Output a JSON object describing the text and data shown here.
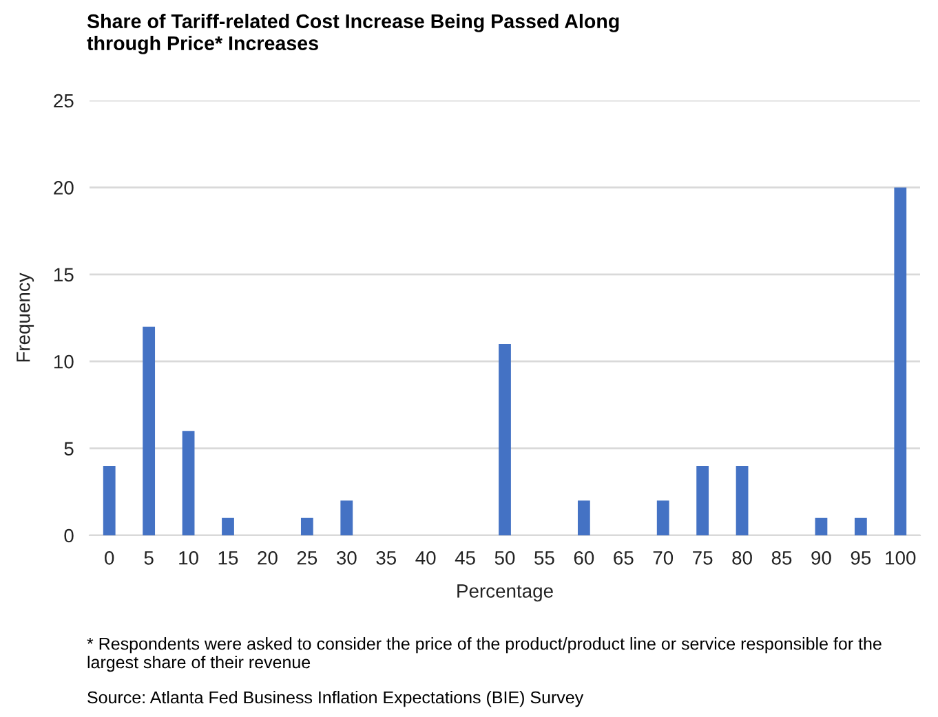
{
  "chart_data": {
    "type": "bar",
    "title": "Share of Tariff-related Cost Increase Being Passed Along\nthrough Price* Increases",
    "xlabel": "Percentage",
    "ylabel": "Frequency",
    "categories": [
      "0",
      "5",
      "10",
      "15",
      "20",
      "25",
      "30",
      "35",
      "40",
      "45",
      "50",
      "55",
      "60",
      "65",
      "70",
      "75",
      "80",
      "85",
      "90",
      "95",
      "100"
    ],
    "values": [
      4,
      12,
      6,
      1,
      0,
      1,
      2,
      0,
      0,
      0,
      11,
      0,
      2,
      0,
      2,
      4,
      4,
      0,
      1,
      1,
      20
    ],
    "color": "#4472c4",
    "ylim": [
      0,
      25
    ],
    "yticks": [
      0,
      5,
      10,
      15,
      20,
      25
    ],
    "grid": "y",
    "legend": false,
    "annotations": [
      "* Respondents were asked to consider the price of the product/product line or service responsible for the largest share of their revenue",
      "Source: Atlanta Fed Business Inflation Expectations (BIE) Survey"
    ]
  }
}
